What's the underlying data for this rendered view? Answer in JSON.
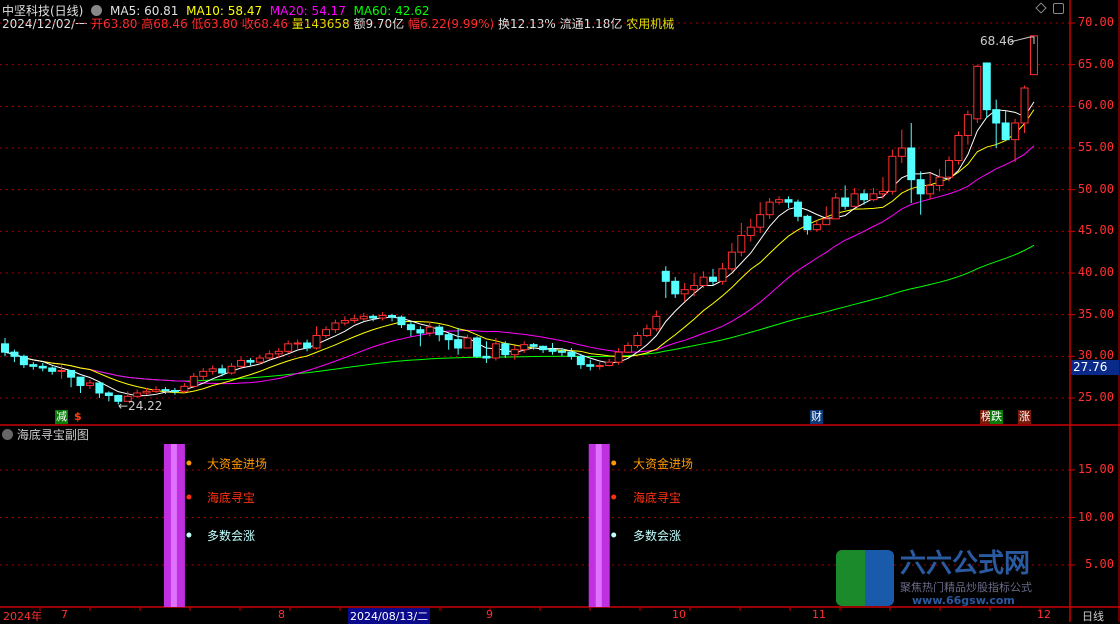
{
  "header": {
    "stock_name": "中坚科技(日线)",
    "ma5": "MA5: 60.81",
    "ma10": "MA10: 58.47",
    "ma20": "MA20: 54.17",
    "ma60": "MA60: 42.62",
    "date": "2024/12/02/一",
    "open": "开63.80",
    "high": "高68.46",
    "low": "低63.80",
    "close": "收68.46",
    "volume": "量143658",
    "amount": "额9.70亿",
    "change": "幅6.22(9.99%)",
    "turnover": "换12.13%",
    "float": "流通1.18亿",
    "sector": "农用机械"
  },
  "colors": {
    "up": "#ff3030",
    "down": "#54ffff",
    "ma5": "#ffffff",
    "ma10": "#ffff00",
    "ma20": "#ff00ff",
    "ma60": "#00ff00",
    "axis": "#cc0000",
    "signal_bar": "#c030e0"
  },
  "price_axis": {
    "ticks": [
      "70.00",
      "65.00",
      "60.00",
      "55.00",
      "50.00",
      "45.00",
      "40.00",
      "35.00",
      "30.00",
      "25.00"
    ],
    "current": "27.76"
  },
  "annotations": {
    "max_label": "68.46",
    "min_label": "24.22"
  },
  "markers": [
    {
      "text": "减",
      "bg": "#0a7a0a"
    },
    {
      "text": "$",
      "bg": "transparent"
    },
    {
      "text": "财",
      "bg": "#0a3a7a"
    },
    {
      "text": "榜",
      "bg": "#7a1a0a"
    },
    {
      "text": "跌",
      "bg": "#0a7a0a"
    },
    {
      "text": "涨",
      "bg": "#7a1a0a"
    }
  ],
  "sub": {
    "title": "海底寻宝副图",
    "ticks": [
      "15.00",
      "10.00",
      "5.00"
    ],
    "signals": [
      "大资金进场",
      "海底寻宝",
      "多数会涨"
    ]
  },
  "date_axis": {
    "labels": [
      "2024年",
      "7",
      "8",
      "9",
      "10",
      "11",
      "12"
    ],
    "cursor_date": "2024/08/13/二",
    "period": "日线"
  },
  "watermark": {
    "name": "六六公式网",
    "slogan": "聚焦热门精品炒股指标公式",
    "url": "www.66gsw.com"
  },
  "candles": {
    "open": [
      31.5,
      30.5,
      30.0,
      29.0,
      28.8,
      28.6,
      28.2,
      28.3,
      27.5,
      26.5,
      26.8,
      25.6,
      25.3,
      24.6,
      25.2,
      25.6,
      25.8,
      26.0,
      25.9,
      25.8,
      26.4,
      27.6,
      28.2,
      28.5,
      28.0,
      28.8,
      29.5,
      29.3,
      29.8,
      30.3,
      30.6,
      31.5,
      31.6,
      31.0,
      32.5,
      33.2,
      34.0,
      34.3,
      34.5,
      34.8,
      34.6,
      34.9,
      34.7,
      33.8,
      33.2,
      32.8,
      33.5,
      32.6,
      32.0,
      31.0,
      32.2,
      30.0,
      29.8,
      31.5,
      30.2,
      30.8,
      31.4,
      31.2,
      30.8,
      30.6,
      30.5,
      30.0,
      29.0,
      28.8,
      28.9,
      29.3,
      30.5,
      31.3,
      32.5,
      33.3,
      40.2,
      39.0,
      37.5,
      38.0,
      38.5,
      39.5,
      39.0,
      40.5,
      42.5,
      44.5,
      45.5,
      47.0,
      48.5,
      48.8,
      48.5,
      46.8,
      45.2,
      45.8,
      46.5,
      49.0,
      48.0,
      49.5,
      48.8,
      49.5,
      49.8,
      54.0,
      55.0,
      51.2,
      49.5,
      50.5,
      51.5,
      53.5,
      56.5,
      58.5,
      65.2,
      59.6,
      58.0,
      56.0,
      58.0,
      63.8
    ],
    "close": [
      30.5,
      30.0,
      29.0,
      28.8,
      28.6,
      28.2,
      28.3,
      27.5,
      26.5,
      26.8,
      25.6,
      25.3,
      24.6,
      25.2,
      25.6,
      25.8,
      26.0,
      25.9,
      25.8,
      26.4,
      27.6,
      28.2,
      28.5,
      28.0,
      28.8,
      29.5,
      29.3,
      29.8,
      30.3,
      30.6,
      31.5,
      31.6,
      31.0,
      32.5,
      33.2,
      34.0,
      34.3,
      34.5,
      34.8,
      34.6,
      34.9,
      34.7,
      33.8,
      33.2,
      32.8,
      33.5,
      32.6,
      32.0,
      31.0,
      32.2,
      30.0,
      29.8,
      31.5,
      30.2,
      30.8,
      31.4,
      31.2,
      30.8,
      30.6,
      30.5,
      30.0,
      29.0,
      28.8,
      28.9,
      29.3,
      30.5,
      31.3,
      32.5,
      33.3,
      34.8,
      39.0,
      37.5,
      38.0,
      38.5,
      39.5,
      39.0,
      40.5,
      42.5,
      44.5,
      45.5,
      47.0,
      48.5,
      48.8,
      48.5,
      46.8,
      45.2,
      45.8,
      46.5,
      49.0,
      48.0,
      49.5,
      48.8,
      49.5,
      49.8,
      54.0,
      55.0,
      51.2,
      49.5,
      50.5,
      51.5,
      53.5,
      56.5,
      59.0,
      64.8,
      59.6,
      58.0,
      56.0,
      58.0,
      62.2,
      68.46
    ],
    "high": [
      32.2,
      30.8,
      30.2,
      29.3,
      29.2,
      28.8,
      28.9,
      28.0,
      27.2,
      27.2,
      26.6,
      25.8,
      25.4,
      25.8,
      26.0,
      26.2,
      26.4,
      26.3,
      26.2,
      26.8,
      28.0,
      28.6,
      28.9,
      29.0,
      29.2,
      29.9,
      29.8,
      30.2,
      30.7,
      31.0,
      31.9,
      32.0,
      32.0,
      33.6,
      33.6,
      34.4,
      34.8,
      35.0,
      35.2,
      35.0,
      35.3,
      35.1,
      34.9,
      34.2,
      33.6,
      34.2,
      33.8,
      32.8,
      33.4,
      32.6,
      32.4,
      31.8,
      32.2,
      31.8,
      31.3,
      31.8,
      31.6,
      31.3,
      31.6,
      31.0,
      31.0,
      30.3,
      29.6,
      29.3,
      29.7,
      31.0,
      31.7,
      32.9,
      33.8,
      35.5,
      40.8,
      39.5,
      38.8,
      40.0,
      40.2,
      40.5,
      41.2,
      43.6,
      46.0,
      46.5,
      48.5,
      49.0,
      49.2,
      49.2,
      48.8,
      47.0,
      46.3,
      48.0,
      49.6,
      50.5,
      50.2,
      50.0,
      50.2,
      51.5,
      54.8,
      57.2,
      58.0,
      52.2,
      52.0,
      52.5,
      54.0,
      57.0,
      59.5,
      65.0,
      65.2,
      60.8,
      59.5,
      58.5,
      62.5,
      68.46
    ],
    "low": [
      30.0,
      29.3,
      28.6,
      28.4,
      28.2,
      27.8,
      27.3,
      26.3,
      25.6,
      26.1,
      25.0,
      24.6,
      24.22,
      24.8,
      25.0,
      25.4,
      25.6,
      25.5,
      25.4,
      25.6,
      26.2,
      27.0,
      27.8,
      27.6,
      27.8,
      28.6,
      28.9,
      29.0,
      29.6,
      29.8,
      30.4,
      30.9,
      30.6,
      30.8,
      32.2,
      32.8,
      33.7,
      34.0,
      34.2,
      34.2,
      34.3,
      34.2,
      33.4,
      32.4,
      31.2,
      32.4,
      31.8,
      30.8,
      30.2,
      31.0,
      29.8,
      29.2,
      29.5,
      29.8,
      29.6,
      30.4,
      30.8,
      30.4,
      30.2,
      30.0,
      29.6,
      28.5,
      28.3,
      28.4,
      28.8,
      29.0,
      30.8,
      31.0,
      32.3,
      33.0,
      37.0,
      37.0,
      36.6,
      37.2,
      38.2,
      38.5,
      38.6,
      40.2,
      42.0,
      43.8,
      44.8,
      46.5,
      48.2,
      47.8,
      46.2,
      44.6,
      45.0,
      45.8,
      46.6,
      47.6,
      48.3,
      48.2,
      48.6,
      48.9,
      49.4,
      53.2,
      48.4,
      47.0,
      48.8,
      49.8,
      51.0,
      53.0,
      55.4,
      58.0,
      58.6,
      55.0,
      56.2,
      53.3,
      56.8,
      63.8
    ]
  },
  "signal_bars": [
    18,
    63
  ]
}
